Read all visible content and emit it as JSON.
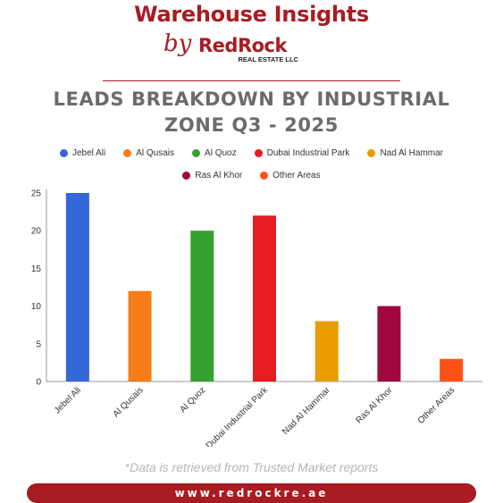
{
  "header": {
    "title": "Warehouse Insights",
    "by": "by",
    "logo_text": "RedRock",
    "logo_sub": "REAL ESTATE LLC"
  },
  "chart_data": {
    "type": "bar",
    "title": "LEADS BREAKDOWN  BY INDUSTRIAL\nZONE Q3 - 2025",
    "categories": [
      "Jebel Ali",
      "Al Qusais",
      "Al Quoz",
      "Dubai Industrial Park",
      "Nad Al Hammar",
      "Ras Al Khor",
      "Other Areas"
    ],
    "values": [
      25,
      12,
      20,
      22,
      8,
      10,
      3
    ],
    "colors": [
      "#3467d6",
      "#f77c1a",
      "#35a22f",
      "#e51c20",
      "#e99c00",
      "#a0073f",
      "#fd5217"
    ],
    "ylim": [
      0,
      25
    ],
    "yticks": [
      0,
      5,
      10,
      15,
      20,
      25
    ],
    "xlabel": "",
    "ylabel": "",
    "legend_placement": "top",
    "grid": false
  },
  "footnote": "*Data is retrieved from Trusted Market reports",
  "footer": {
    "website": "www.redrockre.ae"
  }
}
